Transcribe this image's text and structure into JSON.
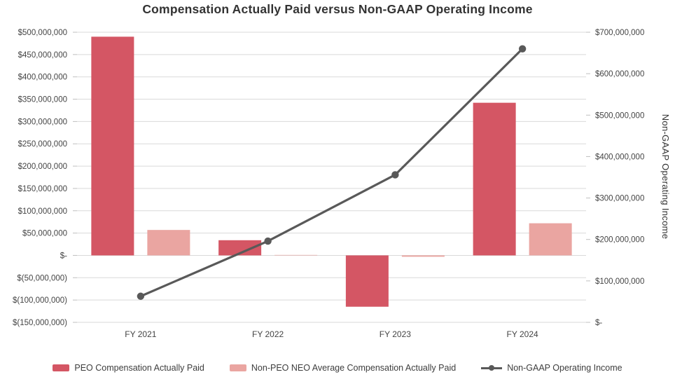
{
  "chart_data": {
    "type": "combo-bar-line",
    "title": "Compensation Actually Paid versus Non-GAAP Operating Income",
    "categories": [
      "FY 2021",
      "FY 2022",
      "FY 2023",
      "FY 2024"
    ],
    "bar_series": [
      {
        "name": "PEO Compensation Actually Paid",
        "color": "#d45664",
        "axis": "left",
        "values": [
          490000000,
          34000000,
          -115000000,
          342000000
        ]
      },
      {
        "name": "Non-PEO NEO Average Compensation Actually Paid",
        "color": "#eaa5a1",
        "axis": "left",
        "values": [
          57000000,
          1000000,
          -3000000,
          72000000
        ]
      }
    ],
    "line_series": {
      "name": "Non-GAAP Operating Income",
      "color": "#595959",
      "axis": "right",
      "values": [
        63000000,
        196000000,
        356000000,
        660000000
      ]
    },
    "left_axis": {
      "min": -150000000,
      "max": 500000000,
      "step": 50000000,
      "tick_labels": [
        "$500,000,000",
        "$450,000,000",
        "$400,000,000",
        "$350,000,000",
        "$300,000,000",
        "$250,000,000",
        "$200,000,000",
        "$150,000,000",
        "$100,000,000",
        "$50,000,000",
        "$-",
        "$(50,000,000)",
        "$(100,000,000)",
        "$(150,000,000)"
      ]
    },
    "right_axis": {
      "min": 0,
      "max": 700000000,
      "step": 100000000,
      "title": "Non-GAAP Operating Income",
      "tick_labels": [
        "$700,000,000",
        "$600,000,000",
        "$500,000,000",
        "$400,000,000",
        "$300,000,000",
        "$200,000,000",
        "$100,000,000",
        "$-"
      ]
    },
    "grid": true,
    "legend_position": "bottom",
    "style": {
      "gridline_color": "#d9d9d9",
      "tick_color": "#bfbfbf",
      "axis_text_color": "#444444",
      "title_color": "#333333"
    }
  }
}
